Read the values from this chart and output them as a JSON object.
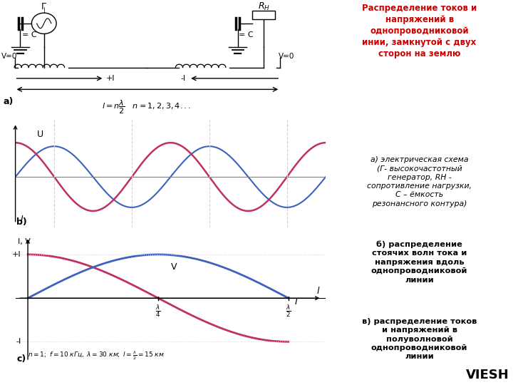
{
  "title_text": "Распределение токов и\nнапряжений в\nоднопроводниковой\nинии, замкнутой с двух\nсторон на землю",
  "title_color": "#cc0000",
  "desc_a": "а) электрическая схема\n(Г- высокочастотный\nгенератор, RH -\nсопротивление нагрузки,\nС – ёмкость\nрезонансного контура)",
  "desc_b": "б) распределение\nстоячих волн тока и\nнапряжения вдоль\nоднопроводниковой\nлинии",
  "desc_v": "в) распределение токов\nи напряжений в\nполуволновой\nоднопроводниковой\nлинии",
  "watermark": "VIESH",
  "color_pink": "#c03060",
  "color_blue": "#4060c0",
  "bg_color": "#ffffff"
}
